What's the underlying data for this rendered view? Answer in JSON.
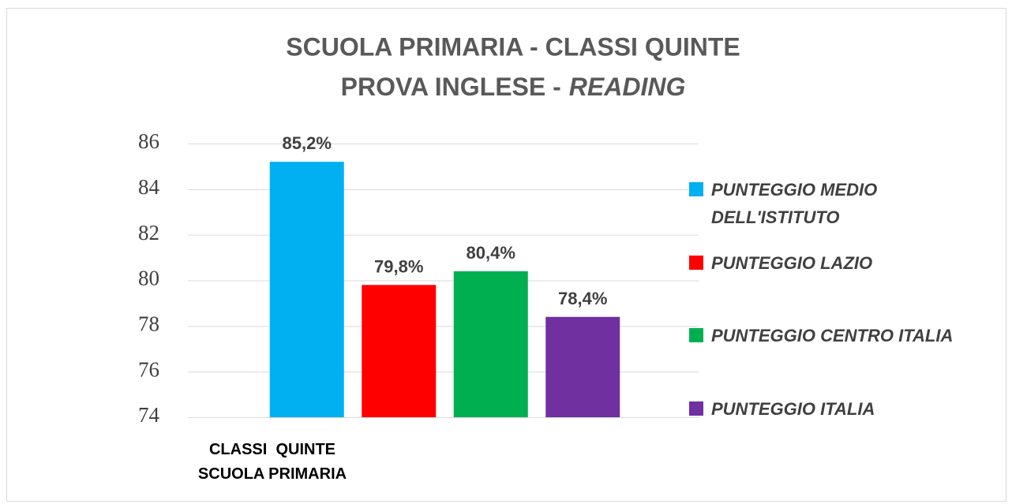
{
  "chart_data": {
    "type": "bar",
    "title": "SCUOLA PRIMARIA - CLASSI QUINTE",
    "subtitle": [
      "PROVA INGLESE -",
      "READING"
    ],
    "categories": [
      "CLASSI  QUINTE\nSCUOLA PRIMARIA"
    ],
    "series": [
      {
        "name": "PUNTEGGIO MEDIO DELL'ISTITUTO",
        "color": "#00b0f0",
        "values": [
          85.2
        ],
        "value_labels": [
          "85,2%"
        ]
      },
      {
        "name": "PUNTEGGIO LAZIO",
        "color": "#ff0000",
        "values": [
          79.8
        ],
        "value_labels": [
          "79,8%"
        ]
      },
      {
        "name": "PUNTEGGIO CENTRO ITALIA",
        "color": "#00b050",
        "values": [
          80.4
        ],
        "value_labels": [
          "80,4%"
        ]
      },
      {
        "name": "PUNTEGGIO ITALIA",
        "color": "#7030a0",
        "values": [
          78.4
        ],
        "value_labels": [
          "78,4%"
        ]
      }
    ],
    "ylim": [
      74,
      86
    ],
    "yticks": [
      74,
      76,
      78,
      80,
      82,
      84,
      86
    ],
    "grid": true,
    "legend": "right"
  }
}
